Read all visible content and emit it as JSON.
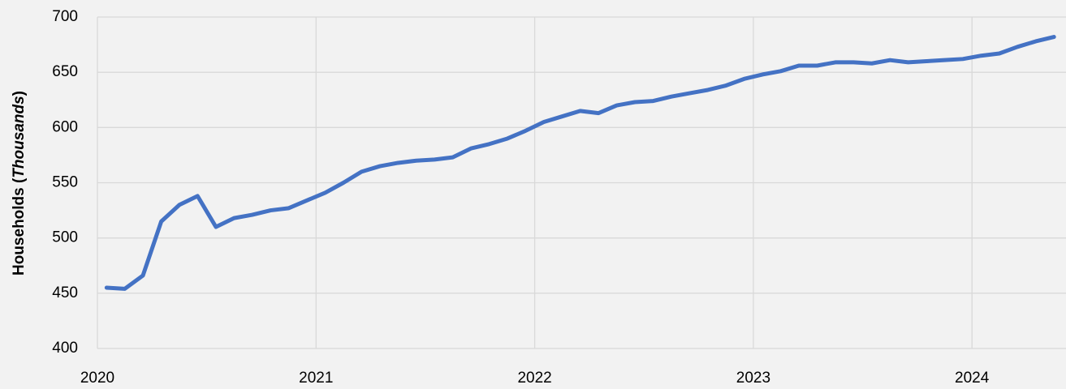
{
  "chart_data": {
    "type": "line",
    "ylabel_parts": [
      "Households (",
      "Thousands",
      ")"
    ],
    "x": [
      2020.042,
      2020.125,
      2020.208,
      2020.292,
      2020.375,
      2020.458,
      2020.542,
      2020.625,
      2020.708,
      2020.792,
      2020.875,
      2020.958,
      2021.042,
      2021.125,
      2021.208,
      2021.292,
      2021.375,
      2021.458,
      2021.542,
      2021.625,
      2021.708,
      2021.792,
      2021.875,
      2021.958,
      2022.042,
      2022.125,
      2022.208,
      2022.292,
      2022.375,
      2022.458,
      2022.542,
      2022.625,
      2022.708,
      2022.792,
      2022.875,
      2022.958,
      2023.042,
      2023.125,
      2023.208,
      2023.292,
      2023.375,
      2023.458,
      2023.542,
      2023.625,
      2023.708,
      2023.792,
      2023.875,
      2023.958,
      2024.042,
      2024.125,
      2024.208,
      2024.292,
      2024.375
    ],
    "series": [
      {
        "name": "Households",
        "color": "#4472c4",
        "values": [
          455,
          454,
          466,
          515,
          530,
          538,
          510,
          518,
          521,
          525,
          527,
          534,
          541,
          550,
          560,
          565,
          568,
          570,
          571,
          573,
          581,
          585,
          590,
          597,
          605,
          610,
          615,
          613,
          620,
          623,
          624,
          628,
          631,
          634,
          638,
          644,
          648,
          651,
          656,
          656,
          659,
          659,
          658,
          661,
          659,
          660,
          661,
          662,
          665,
          667,
          673,
          678,
          682
        ]
      }
    ],
    "xlim": [
      2020,
      2024.43
    ],
    "xticks": [
      2020,
      2021,
      2022,
      2023,
      2024
    ],
    "ylim": [
      400,
      700
    ],
    "yticks": [
      400,
      450,
      500,
      550,
      600,
      650,
      700
    ],
    "grid": true
  }
}
